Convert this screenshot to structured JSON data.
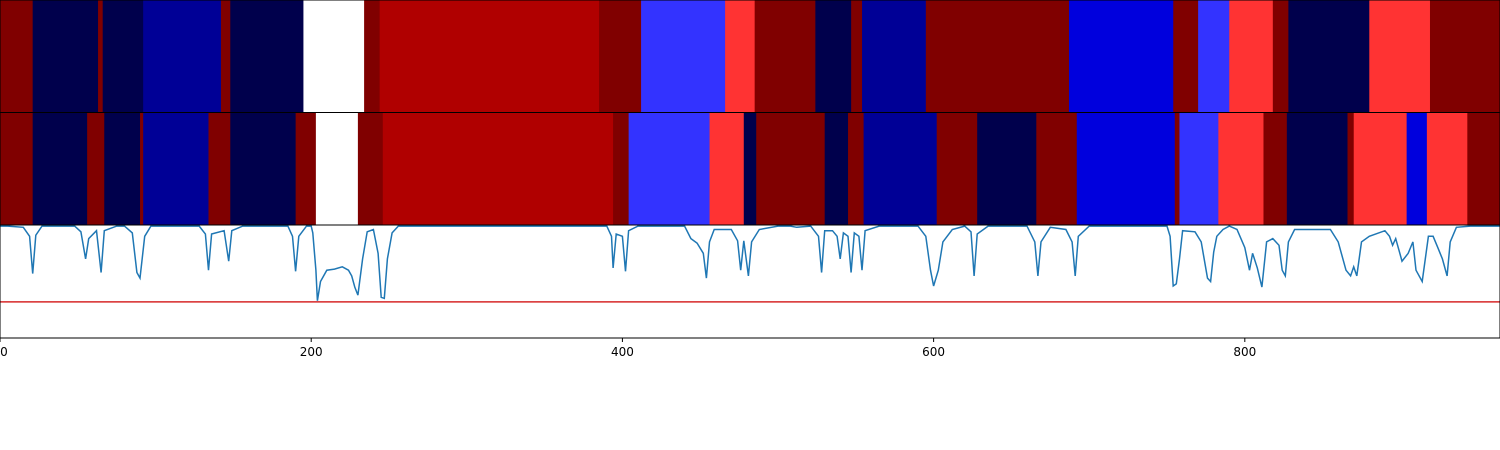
{
  "chart_data": {
    "type": "heatmap",
    "title": "",
    "xlabel": "",
    "ylabel": "",
    "xlim": [
      0,
      964
    ],
    "xticks": [
      {
        "value": 0,
        "label": "0"
      },
      {
        "value": 200,
        "label": "200"
      },
      {
        "value": 400,
        "label": "400"
      },
      {
        "value": 600,
        "label": "600"
      },
      {
        "value": 800,
        "label": "800"
      }
    ],
    "segment_tracks": [
      {
        "segments": [
          {
            "start": 0,
            "end": 21,
            "color": "#800000"
          },
          {
            "start": 21,
            "end": 63,
            "color": "#00004c"
          },
          {
            "start": 63,
            "end": 66,
            "color": "#800000"
          },
          {
            "start": 66,
            "end": 92,
            "color": "#00004c"
          },
          {
            "start": 92,
            "end": 142,
            "color": "#000096"
          },
          {
            "start": 142,
            "end": 148,
            "color": "#800000"
          },
          {
            "start": 148,
            "end": 195,
            "color": "#00004c"
          },
          {
            "start": 195,
            "end": 234,
            "color": "#ffffff"
          },
          {
            "start": 234,
            "end": 244,
            "color": "#800000"
          },
          {
            "start": 244,
            "end": 385,
            "color": "#b00000"
          },
          {
            "start": 385,
            "end": 412,
            "color": "#800000"
          },
          {
            "start": 412,
            "end": 466,
            "color": "#3333ff"
          },
          {
            "start": 466,
            "end": 485,
            "color": "#ff3333"
          },
          {
            "start": 485,
            "end": 524,
            "color": "#800000"
          },
          {
            "start": 524,
            "end": 547,
            "color": "#00004c"
          },
          {
            "start": 547,
            "end": 554,
            "color": "#800000"
          },
          {
            "start": 554,
            "end": 595,
            "color": "#000096"
          },
          {
            "start": 595,
            "end": 687,
            "color": "#800000"
          },
          {
            "start": 687,
            "end": 754,
            "color": "#0000dd"
          },
          {
            "start": 754,
            "end": 770,
            "color": "#800000"
          },
          {
            "start": 770,
            "end": 790,
            "color": "#3333ff"
          },
          {
            "start": 790,
            "end": 818,
            "color": "#ff3333"
          },
          {
            "start": 818,
            "end": 828,
            "color": "#800000"
          },
          {
            "start": 828,
            "end": 880,
            "color": "#00004c"
          },
          {
            "start": 880,
            "end": 919,
            "color": "#ff3333"
          },
          {
            "start": 919,
            "end": 964,
            "color": "#800000"
          }
        ]
      },
      {
        "segments": [
          {
            "start": 0,
            "end": 21,
            "color": "#800000"
          },
          {
            "start": 21,
            "end": 56,
            "color": "#00004c"
          },
          {
            "start": 56,
            "end": 67,
            "color": "#800000"
          },
          {
            "start": 67,
            "end": 90,
            "color": "#00004c"
          },
          {
            "start": 90,
            "end": 92,
            "color": "#800000"
          },
          {
            "start": 92,
            "end": 134,
            "color": "#000096"
          },
          {
            "start": 134,
            "end": 148,
            "color": "#800000"
          },
          {
            "start": 148,
            "end": 190,
            "color": "#00004c"
          },
          {
            "start": 190,
            "end": 203,
            "color": "#800000"
          },
          {
            "start": 203,
            "end": 230,
            "color": "#ffffff"
          },
          {
            "start": 230,
            "end": 246,
            "color": "#800000"
          },
          {
            "start": 246,
            "end": 394,
            "color": "#b00000"
          },
          {
            "start": 394,
            "end": 404,
            "color": "#800000"
          },
          {
            "start": 404,
            "end": 456,
            "color": "#3333ff"
          },
          {
            "start": 456,
            "end": 478,
            "color": "#ff3333"
          },
          {
            "start": 478,
            "end": 486,
            "color": "#00004c"
          },
          {
            "start": 486,
            "end": 530,
            "color": "#800000"
          },
          {
            "start": 530,
            "end": 545,
            "color": "#00004c"
          },
          {
            "start": 545,
            "end": 555,
            "color": "#800000"
          },
          {
            "start": 555,
            "end": 602,
            "color": "#000096"
          },
          {
            "start": 602,
            "end": 628,
            "color": "#800000"
          },
          {
            "start": 628,
            "end": 666,
            "color": "#00004c"
          },
          {
            "start": 666,
            "end": 692,
            "color": "#800000"
          },
          {
            "start": 692,
            "end": 755,
            "color": "#0000dd"
          },
          {
            "start": 755,
            "end": 758,
            "color": "#800000"
          },
          {
            "start": 758,
            "end": 783,
            "color": "#3333ff"
          },
          {
            "start": 783,
            "end": 812,
            "color": "#ff3333"
          },
          {
            "start": 812,
            "end": 827,
            "color": "#800000"
          },
          {
            "start": 827,
            "end": 866,
            "color": "#00004c"
          },
          {
            "start": 866,
            "end": 870,
            "color": "#800000"
          },
          {
            "start": 870,
            "end": 904,
            "color": "#ff3333"
          },
          {
            "start": 904,
            "end": 917,
            "color": "#0000dd"
          },
          {
            "start": 917,
            "end": 943,
            "color": "#ff3333"
          },
          {
            "start": 943,
            "end": 964,
            "color": "#800000"
          }
        ]
      }
    ],
    "signal_panel": {
      "line_color": "#1f77b4",
      "threshold_color": "#d62728",
      "ylim": [
        0,
        1
      ],
      "threshold": 0.32,
      "points": [
        [
          0,
          0.99
        ],
        [
          5,
          0.99
        ],
        [
          15,
          0.98
        ],
        [
          19,
          0.9
        ],
        [
          21,
          0.57
        ],
        [
          23,
          0.91
        ],
        [
          27,
          0.99
        ],
        [
          48,
          0.99
        ],
        [
          52,
          0.94
        ],
        [
          55,
          0.7
        ],
        [
          57,
          0.88
        ],
        [
          62,
          0.95
        ],
        [
          65,
          0.58
        ],
        [
          67,
          0.95
        ],
        [
          75,
          0.99
        ],
        [
          80,
          0.99
        ],
        [
          85,
          0.93
        ],
        [
          88,
          0.58
        ],
        [
          90,
          0.53
        ],
        [
          93,
          0.9
        ],
        [
          97,
          0.99
        ],
        [
          128,
          0.99
        ],
        [
          132,
          0.92
        ],
        [
          134,
          0.6
        ],
        [
          136,
          0.92
        ],
        [
          144,
          0.95
        ],
        [
          147,
          0.68
        ],
        [
          149,
          0.95
        ],
        [
          156,
          0.99
        ],
        [
          185,
          0.99
        ],
        [
          188,
          0.9
        ],
        [
          190,
          0.59
        ],
        [
          192,
          0.9
        ],
        [
          197,
          0.99
        ],
        [
          200,
          0.99
        ],
        [
          201,
          0.93
        ],
        [
          203,
          0.6
        ],
        [
          204,
          0.33
        ],
        [
          206,
          0.5
        ],
        [
          210,
          0.6
        ],
        [
          215,
          0.61
        ],
        [
          220,
          0.63
        ],
        [
          224,
          0.6
        ],
        [
          226,
          0.55
        ],
        [
          228,
          0.45
        ],
        [
          230,
          0.38
        ],
        [
          233,
          0.7
        ],
        [
          236,
          0.94
        ],
        [
          240,
          0.96
        ],
        [
          243,
          0.75
        ],
        [
          245,
          0.36
        ],
        [
          247,
          0.35
        ],
        [
          249,
          0.7
        ],
        [
          252,
          0.93
        ],
        [
          256,
          0.99
        ],
        [
          260,
          0.99
        ],
        [
          390,
          0.99
        ],
        [
          393,
          0.9
        ],
        [
          394,
          0.62
        ],
        [
          396,
          0.92
        ],
        [
          400,
          0.9
        ],
        [
          402,
          0.59
        ],
        [
          404,
          0.95
        ],
        [
          410,
          0.99
        ],
        [
          440,
          0.99
        ],
        [
          444,
          0.88
        ],
        [
          448,
          0.84
        ],
        [
          452,
          0.75
        ],
        [
          454,
          0.53
        ],
        [
          456,
          0.85
        ],
        [
          459,
          0.96
        ],
        [
          470,
          0.96
        ],
        [
          474,
          0.86
        ],
        [
          476,
          0.6
        ],
        [
          478,
          0.86
        ],
        [
          481,
          0.55
        ],
        [
          483,
          0.85
        ],
        [
          488,
          0.96
        ],
        [
          500,
          0.99
        ],
        [
          508,
          0.99
        ],
        [
          512,
          0.98
        ],
        [
          521,
          0.99
        ],
        [
          526,
          0.9
        ],
        [
          528,
          0.58
        ],
        [
          530,
          0.95
        ],
        [
          535,
          0.95
        ],
        [
          538,
          0.9
        ],
        [
          540,
          0.7
        ],
        [
          542,
          0.93
        ],
        [
          545,
          0.9
        ],
        [
          547,
          0.58
        ],
        [
          549,
          0.93
        ],
        [
          552,
          0.9
        ],
        [
          554,
          0.6
        ],
        [
          556,
          0.95
        ],
        [
          565,
          0.99
        ],
        [
          590,
          0.99
        ],
        [
          595,
          0.9
        ],
        [
          598,
          0.6
        ],
        [
          600,
          0.46
        ],
        [
          603,
          0.6
        ],
        [
          606,
          0.85
        ],
        [
          612,
          0.96
        ],
        [
          620,
          0.99
        ],
        [
          624,
          0.94
        ],
        [
          626,
          0.55
        ],
        [
          628,
          0.92
        ],
        [
          635,
          0.99
        ],
        [
          660,
          0.99
        ],
        [
          665,
          0.85
        ],
        [
          667,
          0.55
        ],
        [
          669,
          0.85
        ],
        [
          675,
          0.98
        ],
        [
          685,
          0.96
        ],
        [
          689,
          0.85
        ],
        [
          691,
          0.55
        ],
        [
          693,
          0.9
        ],
        [
          700,
          0.99
        ],
        [
          750,
          0.99
        ],
        [
          752,
          0.9
        ],
        [
          754,
          0.46
        ],
        [
          756,
          0.48
        ],
        [
          758,
          0.7
        ],
        [
          760,
          0.95
        ],
        [
          768,
          0.94
        ],
        [
          772,
          0.85
        ],
        [
          776,
          0.53
        ],
        [
          778,
          0.5
        ],
        [
          780,
          0.76
        ],
        [
          782,
          0.9
        ],
        [
          786,
          0.96
        ],
        [
          790,
          0.99
        ],
        [
          795,
          0.96
        ],
        [
          800,
          0.8
        ],
        [
          803,
          0.6
        ],
        [
          805,
          0.75
        ],
        [
          808,
          0.62
        ],
        [
          811,
          0.45
        ],
        [
          814,
          0.85
        ],
        [
          818,
          0.88
        ],
        [
          822,
          0.82
        ],
        [
          824,
          0.6
        ],
        [
          826,
          0.55
        ],
        [
          828,
          0.85
        ],
        [
          832,
          0.96
        ],
        [
          855,
          0.96
        ],
        [
          860,
          0.85
        ],
        [
          865,
          0.6
        ],
        [
          868,
          0.55
        ],
        [
          870,
          0.63
        ],
        [
          872,
          0.55
        ],
        [
          875,
          0.85
        ],
        [
          880,
          0.9
        ],
        [
          890,
          0.95
        ],
        [
          893,
          0.9
        ],
        [
          895,
          0.82
        ],
        [
          897,
          0.88
        ],
        [
          899,
          0.78
        ],
        [
          901,
          0.68
        ],
        [
          905,
          0.75
        ],
        [
          908,
          0.85
        ],
        [
          910,
          0.6
        ],
        [
          914,
          0.5
        ],
        [
          916,
          0.7
        ],
        [
          918,
          0.9
        ],
        [
          921,
          0.9
        ],
        [
          924,
          0.8
        ],
        [
          927,
          0.7
        ],
        [
          930,
          0.55
        ],
        [
          932,
          0.85
        ],
        [
          936,
          0.98
        ],
        [
          945,
          0.99
        ],
        [
          964,
          0.99
        ]
      ]
    }
  }
}
